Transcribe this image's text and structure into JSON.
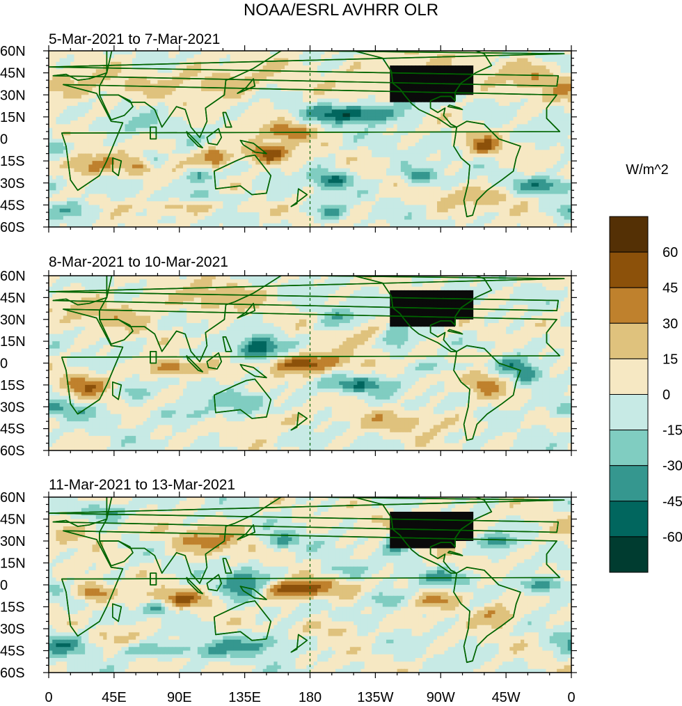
{
  "chart_data": {
    "type": "heatmap",
    "title": "NOAA/ESRL AVHRR OLR",
    "units": "W/m^2",
    "panels": [
      {
        "subtitle": "5-Mar-2021 to 7-Mar-2021"
      },
      {
        "subtitle": "8-Mar-2021 to 10-Mar-2021"
      },
      {
        "subtitle": "11-Mar-2021 to 13-Mar-2021"
      }
    ],
    "lat_ticks": [
      "60N",
      "45N",
      "30N",
      "15N",
      "0",
      "15S",
      "30S",
      "45S",
      "60S"
    ],
    "lat_values": [
      60,
      45,
      30,
      15,
      0,
      -15,
      -30,
      -45,
      -60
    ],
    "lon_ticks": [
      "0",
      "45E",
      "90E",
      "135E",
      "180",
      "135W",
      "90W",
      "45W",
      "0"
    ],
    "lon_values": [
      0,
      45,
      90,
      135,
      180,
      225,
      270,
      315,
      360
    ],
    "xlim": [
      0,
      360
    ],
    "ylim": [
      -60,
      60
    ],
    "colorbar": {
      "labels": [
        "60",
        "45",
        "30",
        "15",
        "0",
        "-15",
        "-30",
        "-45",
        "-60"
      ],
      "bin_colors": [
        "#543005",
        "#8c510a",
        "#bf812d",
        "#dfc27d",
        "#f6e8c3",
        "#c7eae5",
        "#80cdc1",
        "#35978f",
        "#01665e",
        "#003c30"
      ]
    },
    "land_color": "#006400",
    "dateline_lon": 180
  }
}
